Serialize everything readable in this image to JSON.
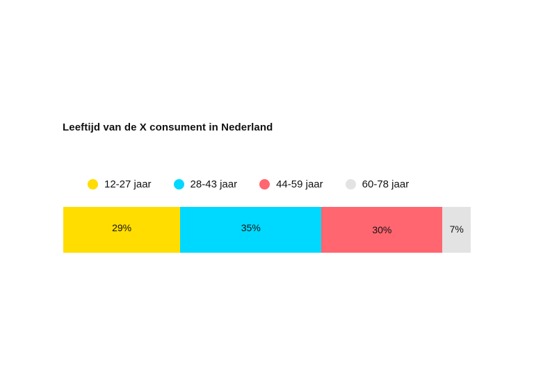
{
  "chart_data": {
    "type": "bar",
    "orientation": "horizontal",
    "stacked": true,
    "title": "Leeftijd van de X consument in Nederland",
    "legend_position": "top",
    "grid": false,
    "unit": "%",
    "categories": [
      "12-27 jaar",
      "28-43 jaar",
      "44-59 jaar",
      "60-78 jaar"
    ],
    "values": [
      29,
      35,
      30,
      7
    ],
    "data_labels": [
      "29%",
      "35%",
      "30%",
      "7%"
    ],
    "colors": [
      "#ffdd00",
      "#00d9ff",
      "#ff6670",
      "#e3e3e3"
    ]
  }
}
